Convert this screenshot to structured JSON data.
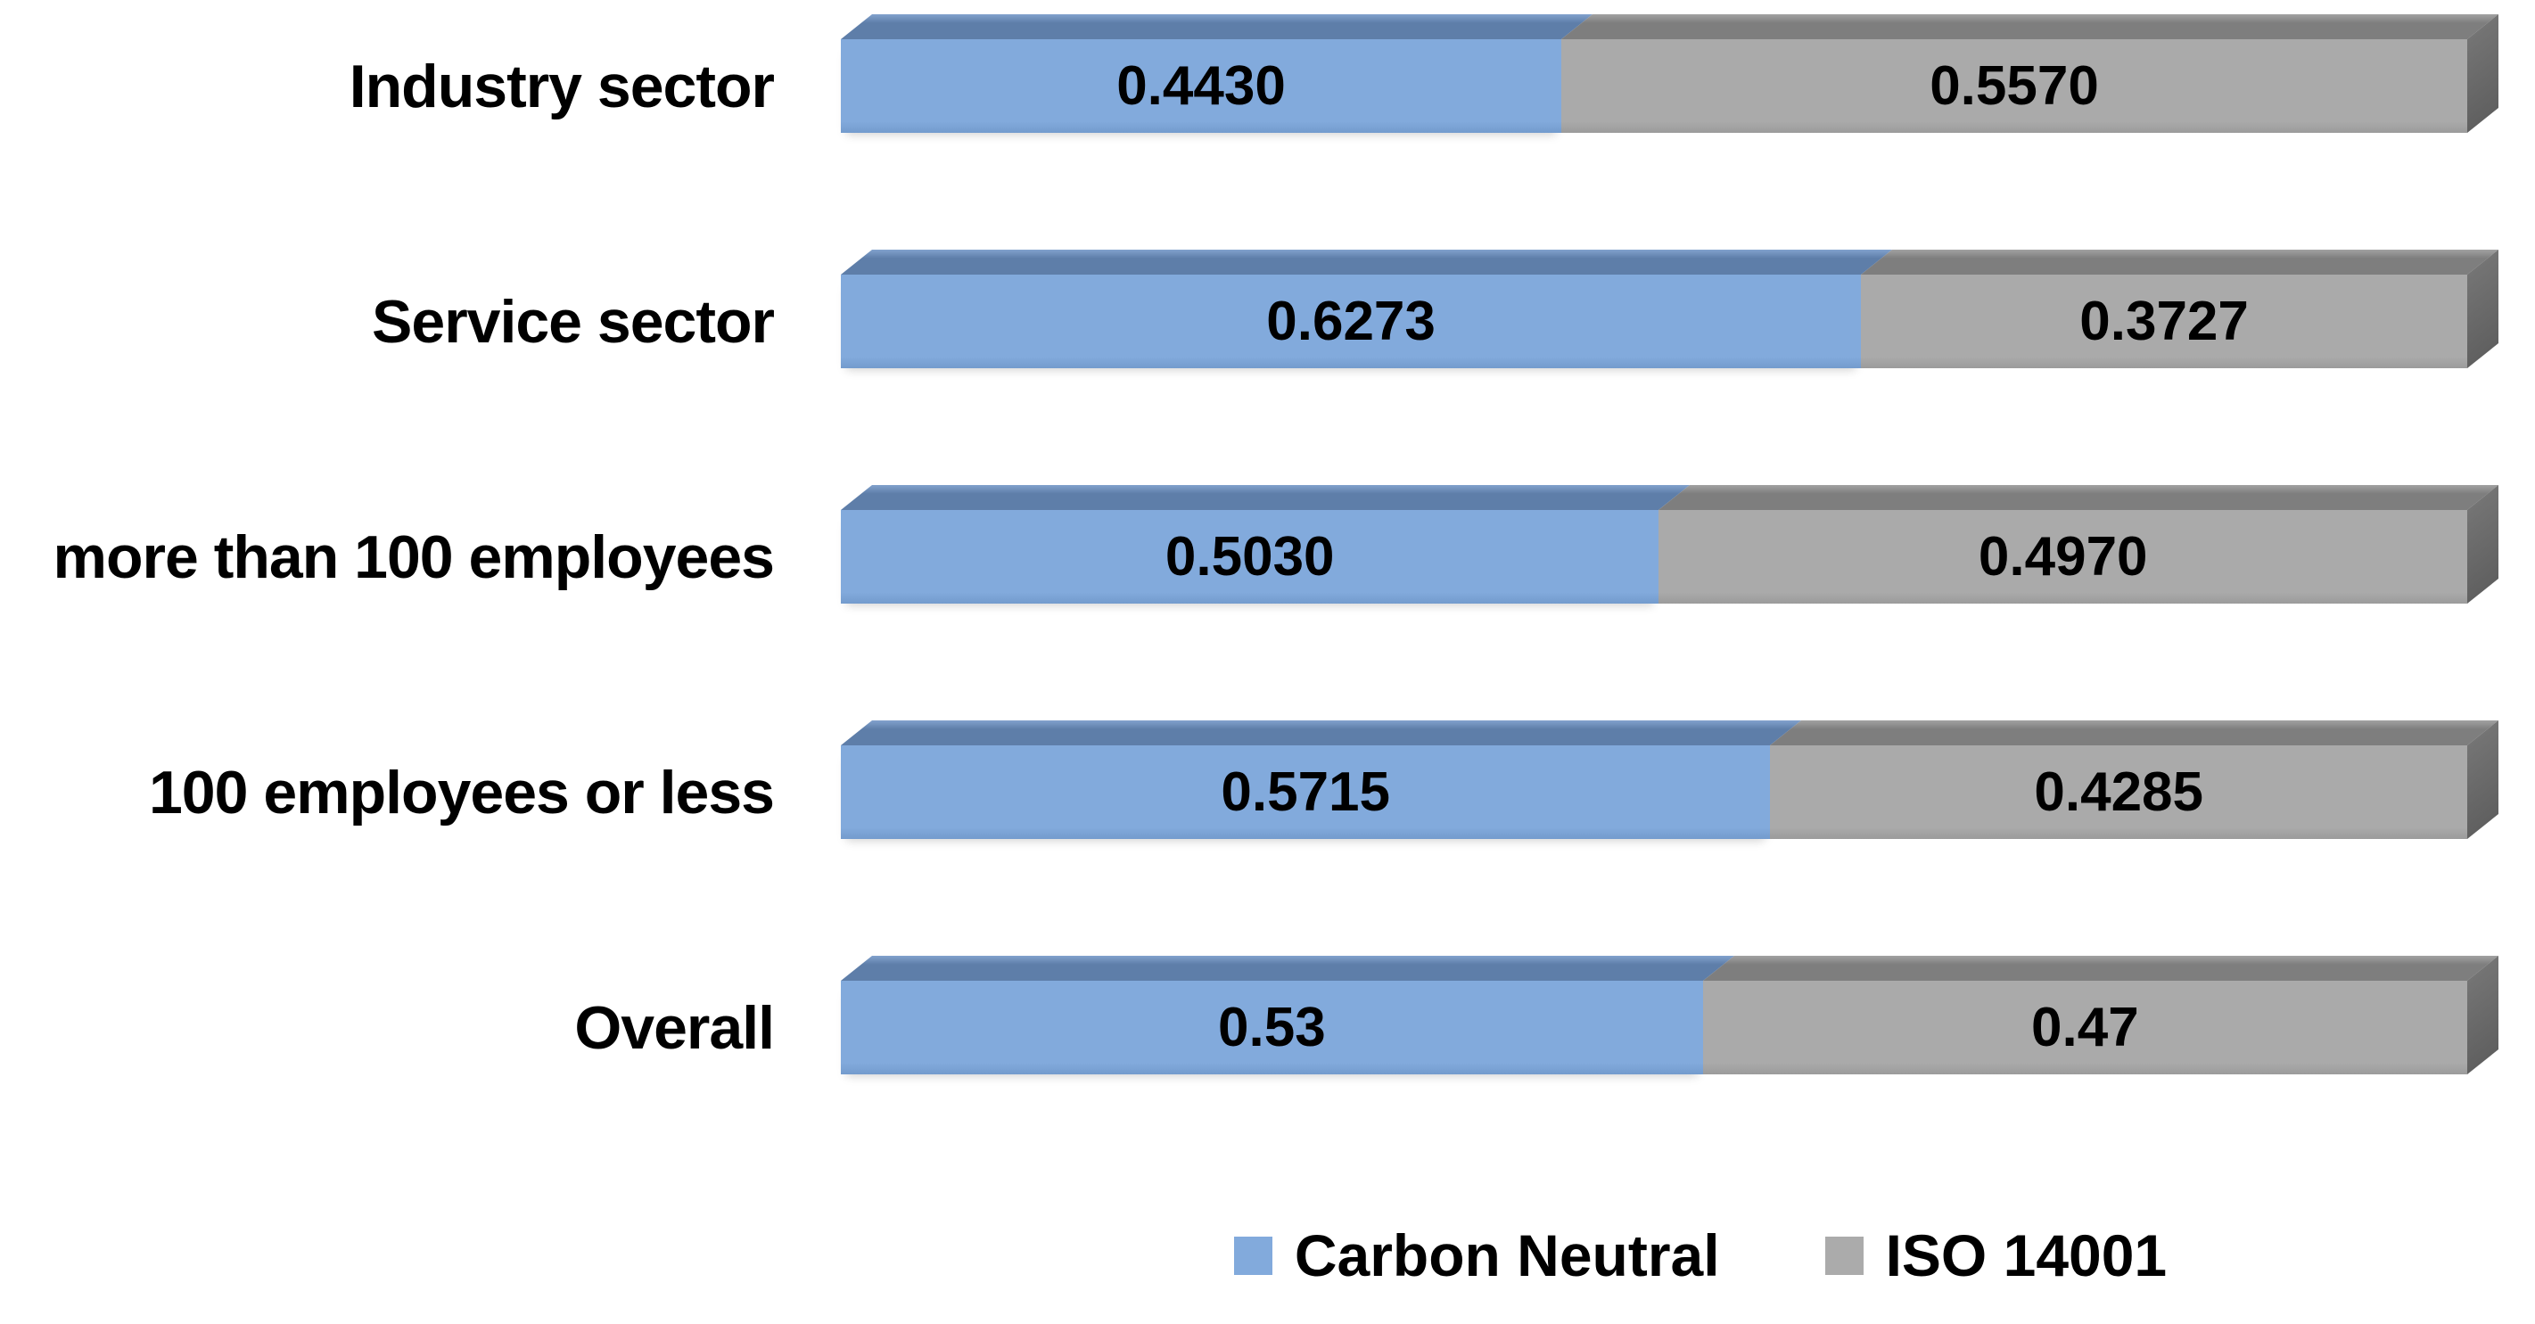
{
  "chart_data": {
    "type": "bar",
    "orientation": "horizontal",
    "stacked": true,
    "title": "",
    "xlabel": "",
    "ylabel": "",
    "xlim": [
      0,
      1
    ],
    "grid": false,
    "legend_position": "bottom",
    "categories": [
      "Industry sector",
      "Service sector",
      "more than 100 employees",
      "100 employees or less",
      "Overall"
    ],
    "series": [
      {
        "name": "Carbon Neutral",
        "values": [
          0.443,
          0.6273,
          0.503,
          0.5715,
          0.53
        ],
        "value_labels": [
          "0.4430",
          "0.6273",
          "0.5030",
          "0.5715",
          "0.53"
        ],
        "front_color": "#82AADC",
        "top_color": "#5E7EA9",
        "side_color": "#4F6C93"
      },
      {
        "name": "ISO 14001",
        "values": [
          0.557,
          0.3727,
          0.497,
          0.4285,
          0.47
        ],
        "value_labels": [
          "0.5570",
          "0.3727",
          "0.4970",
          "0.4285",
          "0.47"
        ],
        "front_color": "#AAAAAA",
        "top_color": "#7E7E7E",
        "side_color": "#747474"
      }
    ]
  },
  "legend": {
    "items": [
      {
        "label": "Carbon Neutral",
        "color": "#82AADC"
      },
      {
        "label": "ISO 14001",
        "color": "#ABABAB"
      }
    ]
  },
  "colors": {
    "background": "#FFFFFF",
    "text": "#000000"
  }
}
